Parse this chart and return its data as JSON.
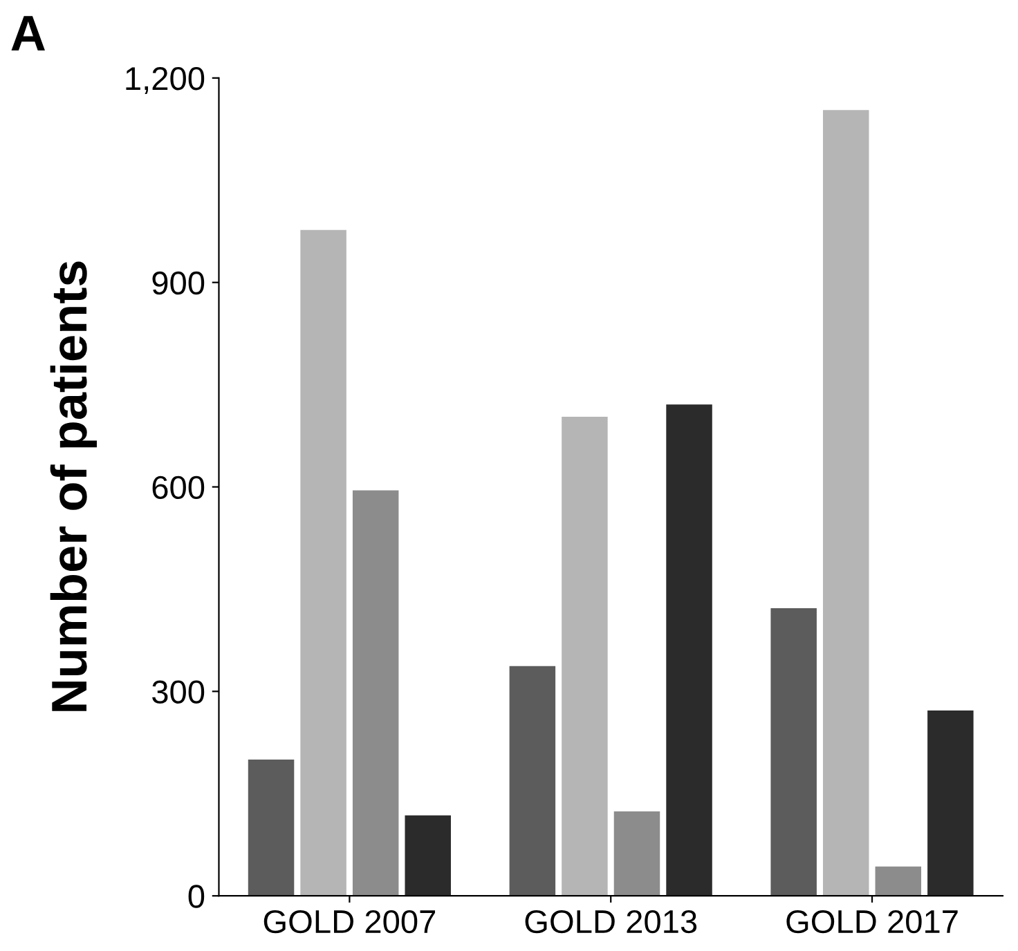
{
  "chart_data": {
    "type": "bar",
    "categories": [
      "GOLD 2007",
      "GOLD 2013",
      "GOLD 2017"
    ],
    "series": [
      {
        "color": "#5c5c5c",
        "values": [
          200,
          337,
          422
        ]
      },
      {
        "color": "#b5b5b5",
        "values": [
          977,
          703,
          1153
        ]
      },
      {
        "color": "#8c8c8c",
        "values": [
          595,
          124,
          43
        ]
      },
      {
        "color": "#2b2b2b",
        "values": [
          118,
          721,
          272
        ]
      }
    ],
    "ylabel": "Number of patients",
    "ylim": [
      0,
      1200
    ],
    "yticks": [
      0,
      300,
      600,
      900,
      {
        "value": 1200,
        "label": "1,200"
      }
    ],
    "annotations": [
      "A"
    ],
    "grid": false,
    "legend": false
  }
}
